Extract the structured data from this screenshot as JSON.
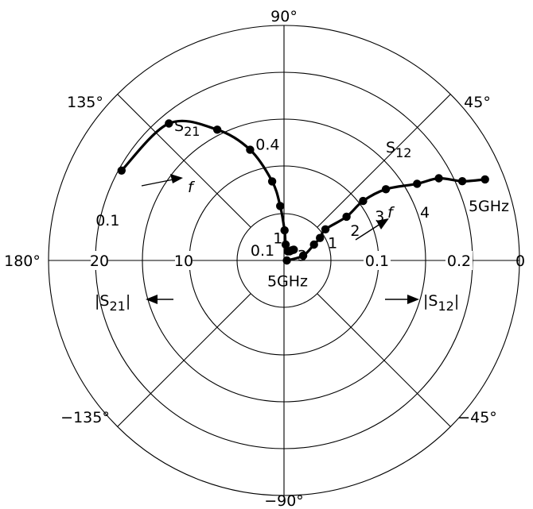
{
  "chart_data": {
    "type": "polar",
    "angle_ticks": [
      {
        "deg": 90,
        "label": "90°"
      },
      {
        "deg": 45,
        "label": "45°"
      },
      {
        "deg": 0,
        "label": "0"
      },
      {
        "deg": -45,
        "label": "−45°"
      },
      {
        "deg": -90,
        "label": "−90°"
      },
      {
        "deg": -135,
        "label": "−135°"
      },
      {
        "deg": 180,
        "label": "180°"
      },
      {
        "deg": 135,
        "label": "135°"
      }
    ],
    "radial_ticks_left": [
      "20",
      "10"
    ],
    "radial_ticks_right": [
      "0.1",
      "0.2"
    ],
    "series": [
      {
        "name": "S21",
        "axis_label": "|S21|",
        "points": [
          [
            19.7,
            151
          ],
          [
            19.0,
            130
          ],
          [
            15.6,
            117
          ],
          [
            12.3,
            107
          ],
          [
            8.5,
            98.5
          ],
          [
            5.8,
            94
          ],
          [
            3.2,
            89
          ],
          [
            1.7,
            84
          ],
          [
            1.05,
            68
          ],
          [
            1.15,
            58
          ],
          [
            1.3,
            54
          ],
          [
            1.45,
            50
          ],
          [
            1.55,
            48
          ]
        ],
        "labels": [
          {
            "text": "0.1",
            "at": [
              19.2,
              167
            ]
          },
          {
            "text": "0.4",
            "at": [
              12.5,
              98
            ]
          },
          {
            "text": "1",
            "at": [
              2.5,
              105
            ]
          },
          {
            "text": "3",
            "at": [
              2.0,
              16
            ]
          },
          {
            "text": "5GHz",
            "at": [
              2.2,
              -80
            ]
          }
        ]
      },
      {
        "name": "S12",
        "axis_label": "|S12|",
        "points": [
          [
            0.003,
            0
          ],
          [
            0.021,
            14
          ],
          [
            0.036,
            28
          ],
          [
            0.045,
            32
          ],
          [
            0.055,
            37
          ],
          [
            0.081,
            35
          ],
          [
            0.105,
            37
          ],
          [
            0.132,
            35
          ],
          [
            0.163,
            30
          ],
          [
            0.186,
            28
          ],
          [
            0.207,
            24
          ],
          [
            0.23,
            22
          ]
        ],
        "labels": [
          {
            "text": "1",
            "at": [
              0.055,
              20
            ]
          },
          {
            "text": "2",
            "at": [
              0.082,
              23
            ]
          },
          {
            "text": "3",
            "at": [
              0.112,
              25
            ]
          },
          {
            "text": "4",
            "at": [
              0.158,
              19
            ]
          },
          {
            "text": "5GHz",
            "at": [
              0.225,
              15
            ]
          }
        ]
      }
    ],
    "annotations": {
      "s21_name_main": "S",
      "s21_name_sub": "21",
      "s12_name_main": "S",
      "s12_name_sub": "12",
      "center_label": "0.1",
      "freq_arrow_label": "f",
      "left_axis_main": "|S",
      "left_axis_sub": "21",
      "left_axis_end": "|",
      "right_axis_main": "|S",
      "right_axis_sub": "12",
      "right_axis_end": "|"
    },
    "grid": true
  }
}
